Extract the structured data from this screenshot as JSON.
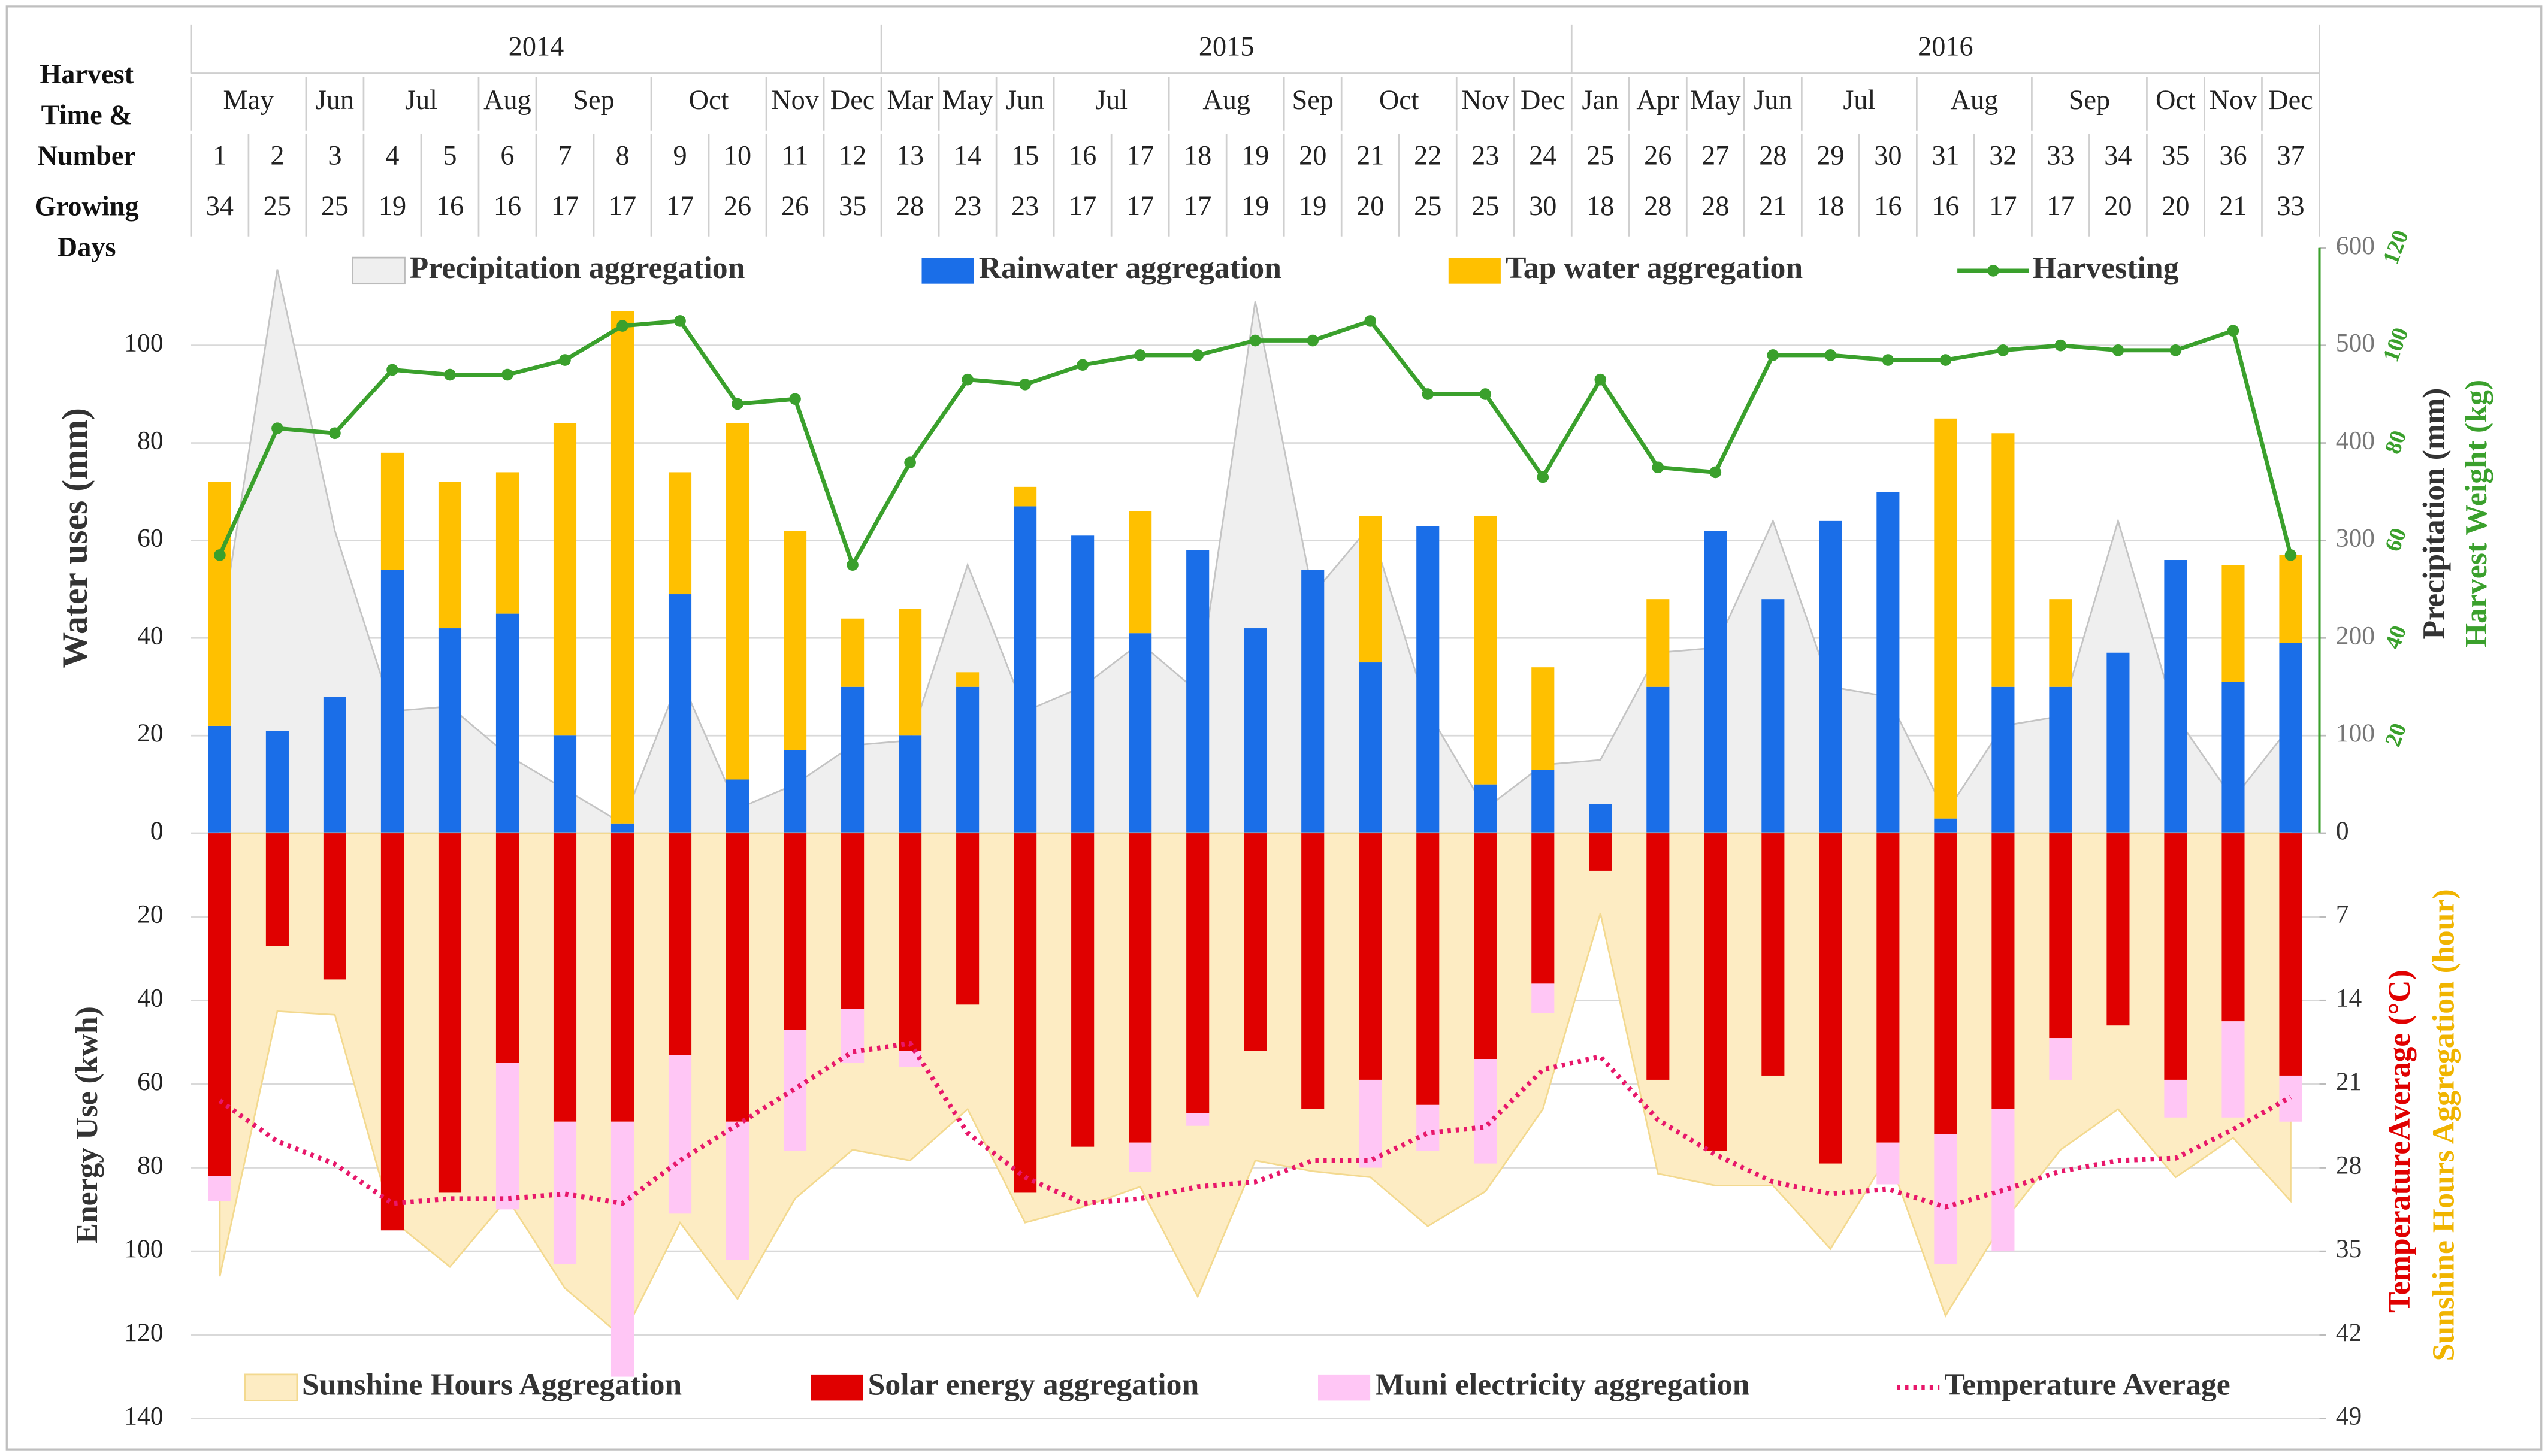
{
  "header": {
    "row_labels": [
      "Harvest Time & Number",
      "Growing Days"
    ],
    "years": [
      "2014",
      null,
      null,
      null,
      null,
      null,
      null,
      null,
      null,
      null,
      null,
      null,
      "2015",
      null,
      null,
      null,
      null,
      null,
      null,
      null,
      null,
      null,
      null,
      null,
      "2016",
      null,
      null,
      null,
      null,
      null,
      null,
      null,
      null,
      null,
      null,
      null,
      null
    ],
    "months": [
      "May",
      null,
      "Jun",
      "Jul",
      null,
      "Aug",
      "Sep",
      null,
      "Oct",
      null,
      "Nov",
      "Dec",
      "Mar",
      "May",
      "Jun",
      "Jul",
      null,
      "Aug",
      null,
      "Sep",
      "Oct",
      null,
      "Nov",
      "Dec",
      "Jan",
      "Apr",
      "May",
      "Jun",
      "Jul",
      null,
      "Aug",
      null,
      "Sep",
      null,
      "Oct",
      "Nov",
      "Dec"
    ],
    "numbers": [
      1,
      2,
      3,
      4,
      5,
      6,
      7,
      8,
      9,
      10,
      11,
      12,
      13,
      14,
      15,
      16,
      17,
      18,
      19,
      20,
      21,
      22,
      23,
      24,
      25,
      26,
      27,
      28,
      29,
      30,
      31,
      32,
      33,
      34,
      35,
      36,
      37
    ],
    "growing_days": [
      34,
      25,
      25,
      19,
      16,
      16,
      17,
      17,
      17,
      26,
      26,
      35,
      28,
      23,
      23,
      17,
      17,
      17,
      19,
      19,
      20,
      25,
      25,
      30,
      18,
      28,
      28,
      21,
      18,
      16,
      16,
      17,
      17,
      20,
      20,
      21,
      33
    ]
  },
  "chart_data": [
    {
      "type": "combo",
      "stacked": true,
      "inverted": false,
      "ylabel": "Water uses (mm)",
      "y2label": "Precipitation (mm)",
      "y3label": "Harvest Weight (kg)",
      "ylim": [
        0,
        120
      ],
      "yticks": [
        0,
        20,
        40,
        60,
        80,
        100
      ],
      "y2lim": [
        0,
        600
      ],
      "y2ticks": [
        0,
        100,
        200,
        300,
        400,
        500,
        600
      ],
      "y3lim": [
        0,
        120
      ],
      "y3ticks": [
        20,
        40,
        60,
        80,
        100,
        120
      ],
      "grid": true,
      "series": [
        {
          "name": "Precipitation aggregation",
          "type": "area",
          "axis": "y2",
          "color": "#efefef",
          "values": [
            200,
            578,
            310,
            125,
            130,
            80,
            45,
            10,
            160,
            25,
            50,
            90,
            95,
            275,
            125,
            150,
            195,
            145,
            545,
            245,
            315,
            125,
            25,
            70,
            75,
            185,
            190,
            320,
            150,
            140,
            20,
            110,
            120,
            320,
            120,
            35,
            110
          ]
        },
        {
          "name": "Rainwater aggregation",
          "type": "bar",
          "color": "#1a6ee8",
          "values": [
            22,
            21,
            28,
            54,
            42,
            45,
            20,
            2,
            49,
            11,
            17,
            30,
            20,
            30,
            67,
            61,
            41,
            58,
            42,
            54,
            35,
            63,
            10,
            13,
            6,
            30,
            62,
            48,
            64,
            70,
            3,
            30,
            30,
            37,
            56,
            31,
            39
          ]
        },
        {
          "name": "Tap water aggregation",
          "type": "bar",
          "color": "#ffc000",
          "values": [
            50,
            0,
            0,
            24,
            30,
            29,
            64,
            105,
            25,
            73,
            45,
            14,
            26,
            3,
            4,
            0,
            25,
            0,
            0,
            0,
            30,
            0,
            55,
            21,
            0,
            18,
            0,
            0,
            0,
            0,
            82,
            52,
            18,
            0,
            0,
            24,
            18
          ]
        },
        {
          "name": "Harvesting",
          "type": "line",
          "axis": "y3",
          "color": "#3aa02c",
          "values": [
            57,
            83,
            82,
            95,
            94,
            94,
            97,
            104,
            105,
            88,
            89,
            55,
            76,
            93,
            92,
            96,
            98,
            98,
            101,
            101,
            105,
            90,
            90,
            73,
            93,
            75,
            74,
            98,
            98,
            97,
            97,
            99,
            100,
            99,
            99,
            103,
            57
          ]
        }
      ]
    },
    {
      "type": "combo",
      "stacked": true,
      "inverted": true,
      "ylabel": "Energy Use (kwh)",
      "y2label": "TemperatureAverage (°C)",
      "y3label": "Sunshine Hours Aggregation (hour)",
      "ylim": [
        0,
        140
      ],
      "yticks": [
        0,
        20,
        40,
        60,
        80,
        100,
        120,
        140
      ],
      "y2lim": [
        0,
        49
      ],
      "y2ticks": [
        0,
        7,
        14,
        21,
        28,
        35,
        42,
        49
      ],
      "grid": true,
      "series": [
        {
          "name": "Sunshine Hours Aggregation",
          "type": "area",
          "axis": "y2",
          "color": "#fdecc3",
          "values": [
            37.1,
            14.9,
            15.2,
            32.4,
            36.3,
            30.6,
            38.1,
            42.2,
            32.6,
            39.0,
            30.6,
            26.5,
            27.4,
            23.1,
            32.6,
            31.3,
            29.6,
            38.8,
            27.4,
            28.3,
            28.8,
            32.9,
            30.0,
            23.1,
            6.7,
            28.5,
            29.5,
            29.5,
            34.8,
            27.0,
            40.4,
            32.6,
            26.5,
            23.1,
            28.8,
            25.5,
            30.8
          ]
        },
        {
          "name": "Solar energy aggregation",
          "type": "bar",
          "color": "#e00000",
          "values": [
            82,
            27,
            35,
            95,
            86,
            55,
            69,
            69,
            53,
            69,
            47,
            42,
            52,
            41,
            86,
            75,
            74,
            67,
            52,
            66,
            59,
            65,
            54,
            36,
            9,
            59,
            76,
            58,
            79,
            74,
            72,
            66,
            49,
            46,
            59,
            45,
            58
          ]
        },
        {
          "name": "Muni electricity aggregation",
          "type": "bar",
          "color": "#ffc6f5",
          "values": [
            6,
            0,
            0,
            0,
            0,
            35,
            34,
            61,
            38,
            33,
            29,
            13,
            4,
            0,
            0,
            0,
            7,
            3,
            0,
            0,
            21,
            11,
            25,
            7,
            0,
            0,
            0,
            0,
            0,
            10,
            31,
            34,
            10,
            0,
            9,
            23,
            11
          ]
        },
        {
          "name": "Temperature Average",
          "type": "line",
          "axis": "y2",
          "color": "#e8176a",
          "dash": "dotted",
          "values": [
            22.4,
            25.8,
            27.7,
            31.0,
            30.6,
            30.6,
            30.2,
            31.0,
            27.4,
            24.4,
            21.4,
            18.3,
            17.6,
            25.1,
            28.8,
            31.0,
            30.6,
            29.6,
            29.2,
            27.4,
            27.4,
            25.1,
            24.6,
            19.8,
            18.7,
            24.0,
            26.9,
            29.2,
            30.2,
            29.8,
            31.3,
            29.9,
            28.3,
            27.4,
            27.2,
            24.8,
            22.1
          ]
        }
      ]
    }
  ]
}
